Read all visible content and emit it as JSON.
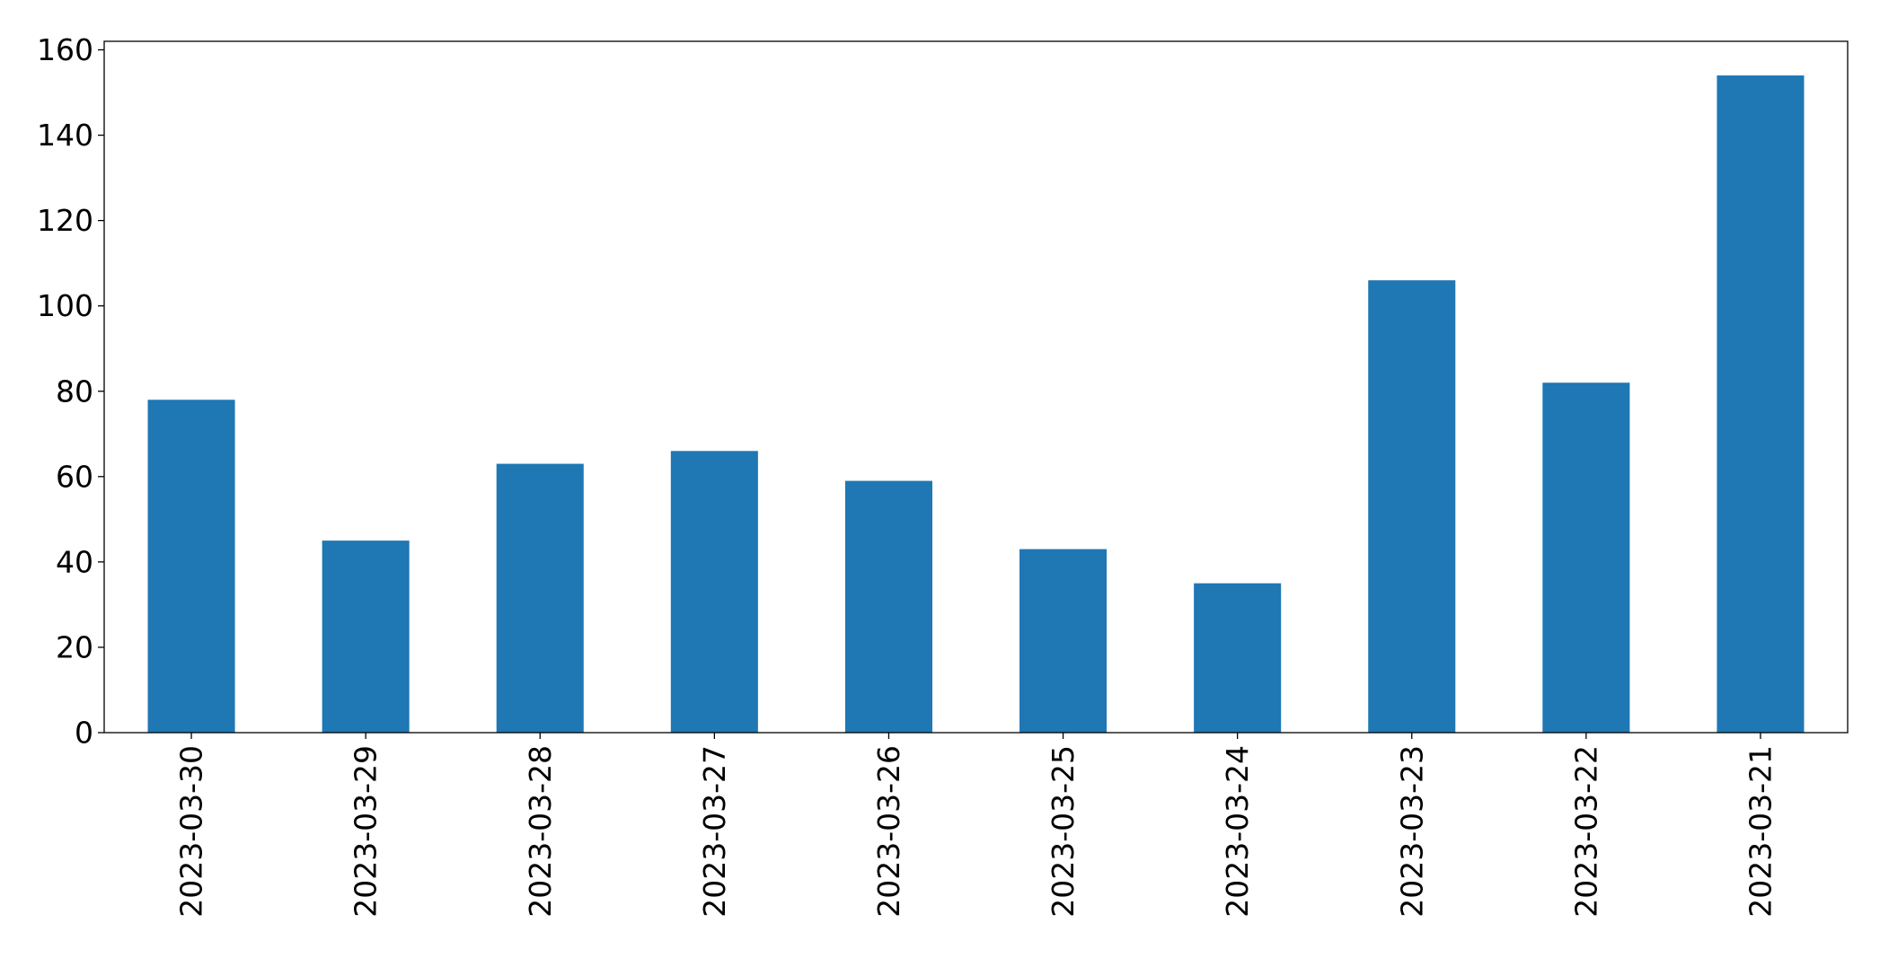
{
  "chart_data": {
    "type": "bar",
    "title": "",
    "xlabel": "",
    "ylabel": "",
    "categories": [
      "2023-03-30",
      "2023-03-29",
      "2023-03-28",
      "2023-03-27",
      "2023-03-26",
      "2023-03-25",
      "2023-03-24",
      "2023-03-23",
      "2023-03-22",
      "2023-03-21"
    ],
    "values": [
      78,
      45,
      63,
      66,
      59,
      43,
      35,
      106,
      82,
      154
    ],
    "ylim": [
      0,
      162
    ],
    "yticks": [
      0,
      20,
      40,
      60,
      80,
      100,
      120,
      140,
      160
    ],
    "grid": false,
    "legend": "none",
    "x_tick_rotation": "vertical",
    "colors": {
      "bar": "#1f77b4",
      "axis": "#000000",
      "text": "#000000",
      "background": "#ffffff"
    }
  }
}
